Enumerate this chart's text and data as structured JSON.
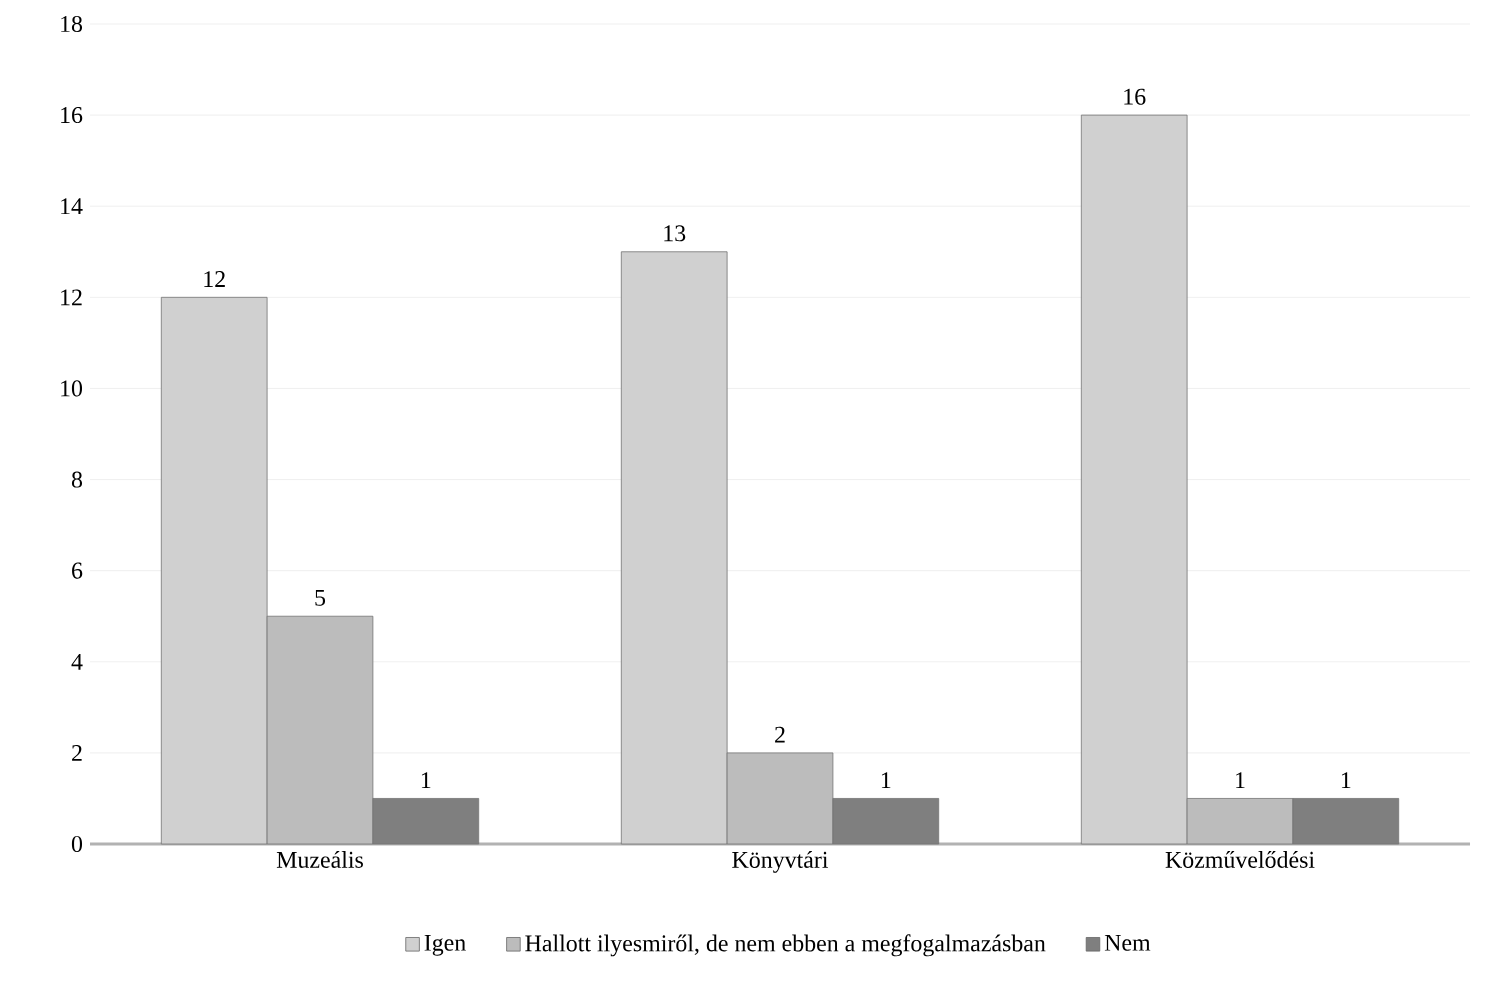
{
  "chart_data": {
    "type": "bar",
    "categories": [
      "Muzeális",
      "Könyvtári",
      "Közművelődési"
    ],
    "series": [
      {
        "name": "Igen",
        "color": "#d0d0d0",
        "values": [
          12,
          13,
          16
        ]
      },
      {
        "name": "Hallott ilyesmiről, de nem ebben a megfogalmazásban",
        "color": "#bcbcbc",
        "values": [
          5,
          2,
          1
        ]
      },
      {
        "name": "Nem",
        "color": "#7f7f7f",
        "values": [
          1,
          1,
          1
        ]
      }
    ],
    "ylim": [
      0,
      18
    ],
    "yticks": [
      0,
      2,
      4,
      6,
      8,
      10,
      12,
      14,
      16,
      18
    ],
    "grid": "y",
    "legend": "bottom",
    "data_labels": true
  }
}
